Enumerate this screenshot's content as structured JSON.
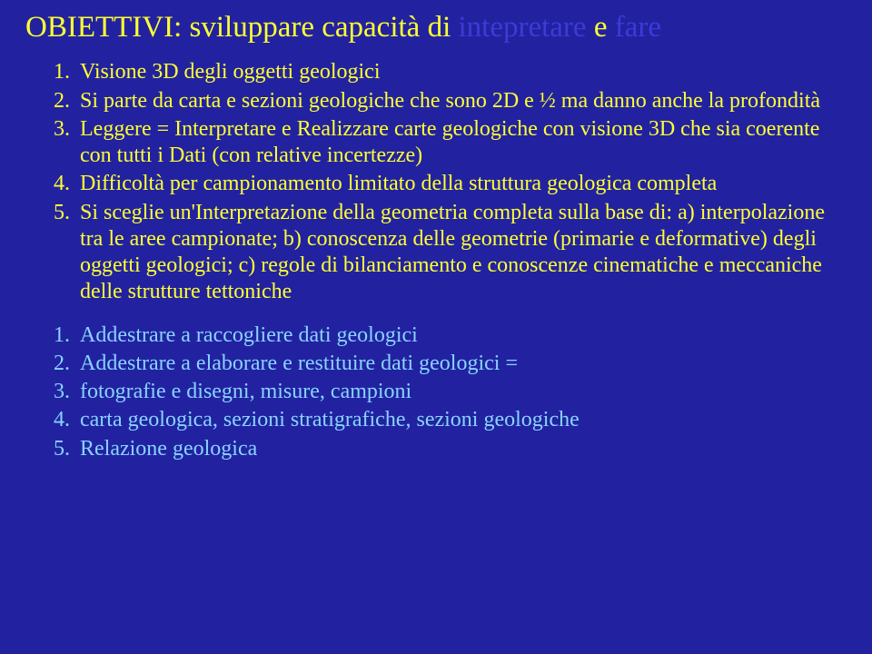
{
  "slide": {
    "background_color": "#2222a0",
    "title_color": "#ffff33",
    "body_color": "#ffff33",
    "lower_color": "#89d3ff",
    "title_fontsize": 33,
    "body_fontsize": 24,
    "title_prefix": "OBIETTIVI: sviluppare capacità di ",
    "title_emph1": "intepretare",
    "title_mid": " e ",
    "title_emph2": "fare",
    "upper_items": [
      "Visione 3D degli oggetti geologici",
      "Si parte da carta e sezioni geologiche che sono 2D e ½ ma danno anche la profondità",
      "Leggere = Interpretare e Realizzare carte geologiche con visione 3D che sia coerente con tutti i Dati (con relative incertezze)",
      "Difficoltà per campionamento limitato della struttura geologica completa",
      "Si sceglie un'Interpretazione della geometria completa sulla base di: a) interpolazione tra le aree campionate; b) conoscenza delle geometrie (primarie e deformative) degli oggetti geologici; c) regole di bilanciamento e conoscenze cinematiche e meccaniche delle strutture tettoniche"
    ],
    "lower_items": [
      "Addestrare a raccogliere dati geologici",
      "Addestrare a elaborare e restituire dati geologici =",
      "fotografie e disegni, misure, campioni",
      "carta geologica, sezioni stratigrafiche, sezioni geologiche",
      "Relazione geologica"
    ]
  }
}
